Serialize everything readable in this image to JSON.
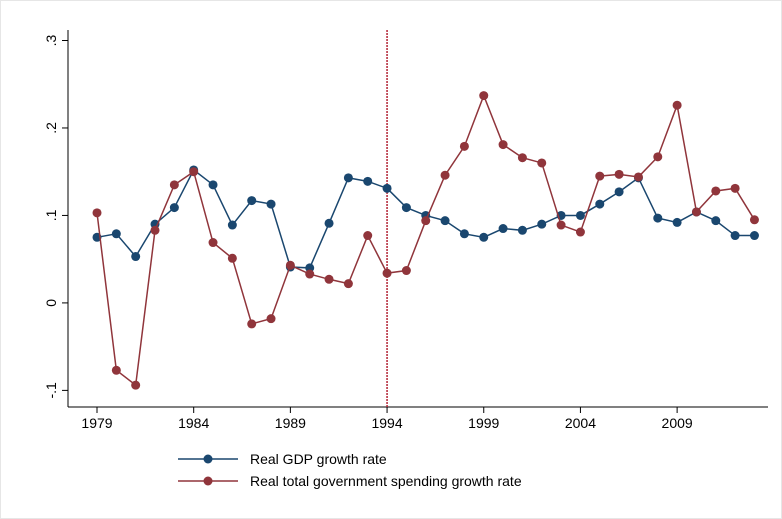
{
  "chart_data": {
    "type": "line",
    "x": [
      1979,
      1980,
      1981,
      1982,
      1983,
      1984,
      1985,
      1986,
      1987,
      1988,
      1989,
      1990,
      1991,
      1992,
      1993,
      1994,
      1995,
      1996,
      1997,
      1998,
      1999,
      2000,
      2001,
      2002,
      2003,
      2004,
      2005,
      2006,
      2007,
      2008,
      2009,
      2010,
      2011,
      2012,
      2013
    ],
    "series": [
      {
        "name": "Real GDP growth rate",
        "color": "#1a476f",
        "values": [
          0.075,
          0.079,
          0.053,
          0.09,
          0.109,
          0.152,
          0.135,
          0.089,
          0.117,
          0.113,
          0.041,
          0.04,
          0.091,
          0.143,
          0.139,
          0.131,
          0.109,
          0.1,
          0.094,
          0.079,
          0.075,
          0.085,
          0.083,
          0.09,
          0.1,
          0.1,
          0.113,
          0.127,
          0.143,
          0.097,
          0.092,
          0.104,
          0.094,
          0.077,
          0.077
        ]
      },
      {
        "name": "Real total government spending growth rate",
        "color": "#90353b",
        "values": [
          0.103,
          -0.077,
          -0.094,
          0.083,
          0.135,
          0.15,
          0.069,
          0.051,
          -0.024,
          -0.018,
          0.043,
          0.033,
          0.027,
          0.022,
          0.077,
          0.034,
          0.037,
          0.094,
          0.146,
          0.179,
          0.237,
          0.181,
          0.166,
          0.16,
          0.089,
          0.081,
          0.145,
          0.147,
          0.144,
          0.167,
          0.226,
          0.104,
          0.128,
          0.131,
          0.095
        ]
      }
    ],
    "xlim": [
      1977.5,
      2013.7
    ],
    "ylim": [
      -0.119,
      0.312
    ],
    "xticks": [
      1979,
      1984,
      1989,
      1994,
      1999,
      2004,
      2009
    ],
    "yticks": [
      {
        "value": -0.1,
        "label": "-.1"
      },
      0,
      {
        "value": 0.1,
        "label": ".1"
      },
      {
        "value": 0.2,
        "label": ".2"
      },
      {
        "value": 0.3,
        "label": ".3"
      }
    ],
    "vline": {
      "x": 1994,
      "color": "#b22234"
    },
    "grid": false,
    "legend": "bottom"
  }
}
